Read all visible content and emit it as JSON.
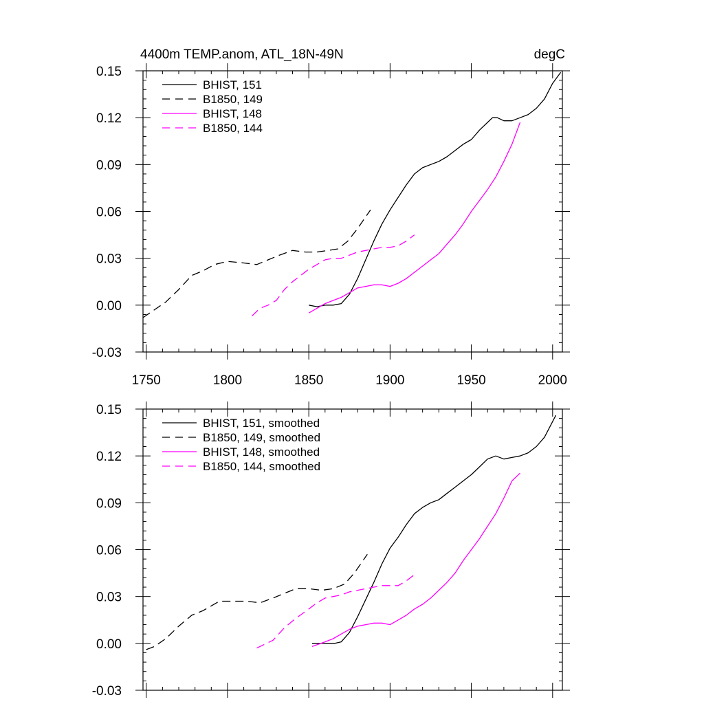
{
  "chart_data": [
    {
      "type": "line",
      "title": "4400m TEMP.anom, ATL_18N-49N",
      "units": "degC",
      "xlabel": "",
      "ylabel": "",
      "xlim": [
        1748,
        2006
      ],
      "ylim": [
        -0.03,
        0.15
      ],
      "xticks": [
        "1750",
        "1800",
        "1850",
        "1900",
        "1950",
        "2000"
      ],
      "yticks": [
        "-0.03",
        "0.00",
        "0.03",
        "0.06",
        "0.09",
        "0.12",
        "0.15"
      ],
      "legend_position": "top-left",
      "grid": false,
      "series": [
        {
          "name": "BHIST, 151",
          "color": "#000000",
          "dash": "solid",
          "x": [
            1850,
            1855,
            1860,
            1865,
            1870,
            1875,
            1880,
            1885,
            1890,
            1895,
            1900,
            1905,
            1910,
            1915,
            1920,
            1925,
            1930,
            1935,
            1940,
            1945,
            1950,
            1955,
            1960,
            1963,
            1966,
            1970,
            1975,
            1980,
            1985,
            1990,
            1995,
            2000,
            2005
          ],
          "y": [
            0.0,
            -0.001,
            0.0,
            0.0,
            0.001,
            0.007,
            0.017,
            0.029,
            0.041,
            0.052,
            0.061,
            0.069,
            0.077,
            0.084,
            0.088,
            0.09,
            0.092,
            0.095,
            0.099,
            0.103,
            0.106,
            0.112,
            0.117,
            0.12,
            0.12,
            0.118,
            0.118,
            0.12,
            0.122,
            0.126,
            0.132,
            0.142,
            0.149
          ]
        },
        {
          "name": "B1850, 149",
          "color": "#000000",
          "dash": "dashed",
          "x": [
            1748,
            1755,
            1762,
            1770,
            1778,
            1785,
            1792,
            1800,
            1810,
            1818,
            1825,
            1832,
            1840,
            1848,
            1855,
            1862,
            1868,
            1874,
            1880,
            1888
          ],
          "y": [
            -0.008,
            -0.003,
            0.002,
            0.01,
            0.019,
            0.022,
            0.026,
            0.028,
            0.027,
            0.026,
            0.029,
            0.032,
            0.035,
            0.034,
            0.034,
            0.035,
            0.036,
            0.041,
            0.049,
            0.061
          ]
        },
        {
          "name": "BHIST, 148",
          "color": "#ff00ff",
          "dash": "solid",
          "x": [
            1850,
            1855,
            1860,
            1865,
            1870,
            1875,
            1880,
            1885,
            1890,
            1895,
            1900,
            1905,
            1910,
            1915,
            1920,
            1925,
            1930,
            1935,
            1940,
            1945,
            1950,
            1955,
            1960,
            1965,
            1970,
            1975,
            1980
          ],
          "y": [
            -0.005,
            -0.002,
            0.001,
            0.003,
            0.005,
            0.008,
            0.011,
            0.012,
            0.013,
            0.013,
            0.012,
            0.014,
            0.017,
            0.021,
            0.025,
            0.029,
            0.033,
            0.039,
            0.045,
            0.052,
            0.06,
            0.067,
            0.074,
            0.082,
            0.092,
            0.103,
            0.117
          ]
        },
        {
          "name": "B1850, 144",
          "color": "#ff00ff",
          "dash": "dashed",
          "x": [
            1815,
            1820,
            1825,
            1830,
            1835,
            1840,
            1845,
            1850,
            1855,
            1860,
            1865,
            1870,
            1875,
            1880,
            1885,
            1890,
            1895,
            1900,
            1905,
            1910,
            1915
          ],
          "y": [
            -0.007,
            -0.002,
            0.0,
            0.003,
            0.01,
            0.015,
            0.019,
            0.023,
            0.026,
            0.029,
            0.03,
            0.03,
            0.032,
            0.034,
            0.035,
            0.036,
            0.037,
            0.037,
            0.038,
            0.041,
            0.045
          ]
        }
      ]
    },
    {
      "type": "line",
      "title": "",
      "xlabel": "",
      "ylabel": "",
      "xlim": [
        1748,
        2006
      ],
      "ylim": [
        -0.03,
        0.15
      ],
      "yticks": [
        "-0.03",
        "0.00",
        "0.03",
        "0.06",
        "0.09",
        "0.12",
        "0.15"
      ],
      "legend_position": "top-left",
      "grid": false,
      "series": [
        {
          "name": "BHIST, 151, smoothed",
          "color": "#000000",
          "dash": "solid",
          "x": [
            1852,
            1860,
            1866,
            1870,
            1875,
            1880,
            1885,
            1890,
            1895,
            1900,
            1905,
            1910,
            1915,
            1920,
            1925,
            1930,
            1935,
            1940,
            1945,
            1950,
            1955,
            1960,
            1965,
            1970,
            1975,
            1980,
            1985,
            1990,
            1995,
            2002
          ],
          "y": [
            0.0,
            0.0,
            0.0,
            0.001,
            0.007,
            0.017,
            0.028,
            0.039,
            0.051,
            0.061,
            0.068,
            0.076,
            0.083,
            0.087,
            0.09,
            0.092,
            0.096,
            0.1,
            0.104,
            0.108,
            0.113,
            0.118,
            0.12,
            0.118,
            0.119,
            0.12,
            0.122,
            0.126,
            0.132,
            0.146
          ]
        },
        {
          "name": "B1850, 149, smoothed",
          "color": "#000000",
          "dash": "dashed",
          "x": [
            1750,
            1755,
            1762,
            1770,
            1778,
            1785,
            1795,
            1805,
            1812,
            1820,
            1828,
            1835,
            1842,
            1850,
            1858,
            1865,
            1872,
            1878,
            1886
          ],
          "y": [
            -0.004,
            -0.002,
            0.003,
            0.011,
            0.018,
            0.021,
            0.027,
            0.027,
            0.027,
            0.026,
            0.029,
            0.032,
            0.035,
            0.035,
            0.034,
            0.035,
            0.038,
            0.045,
            0.057
          ]
        },
        {
          "name": "BHIST, 148, smoothed",
          "color": "#ff00ff",
          "dash": "solid",
          "x": [
            1852,
            1860,
            1865,
            1870,
            1875,
            1880,
            1885,
            1890,
            1895,
            1900,
            1905,
            1910,
            1915,
            1920,
            1925,
            1930,
            1935,
            1940,
            1945,
            1950,
            1955,
            1960,
            1965,
            1970,
            1975,
            1980
          ],
          "y": [
            -0.002,
            0.001,
            0.003,
            0.006,
            0.009,
            0.011,
            0.012,
            0.013,
            0.013,
            0.012,
            0.015,
            0.018,
            0.022,
            0.025,
            0.029,
            0.034,
            0.039,
            0.045,
            0.053,
            0.06,
            0.067,
            0.075,
            0.083,
            0.093,
            0.104,
            0.109
          ]
        },
        {
          "name": "B1850, 144, smoothed",
          "color": "#ff00ff",
          "dash": "dashed",
          "x": [
            1818,
            1822,
            1828,
            1835,
            1842,
            1850,
            1855,
            1860,
            1865,
            1870,
            1875,
            1880,
            1885,
            1890,
            1895,
            1900,
            1905,
            1910,
            1915
          ],
          "y": [
            -0.003,
            -0.001,
            0.002,
            0.01,
            0.016,
            0.022,
            0.026,
            0.029,
            0.03,
            0.031,
            0.033,
            0.034,
            0.035,
            0.036,
            0.037,
            0.037,
            0.037,
            0.04,
            0.044
          ]
        }
      ]
    }
  ]
}
